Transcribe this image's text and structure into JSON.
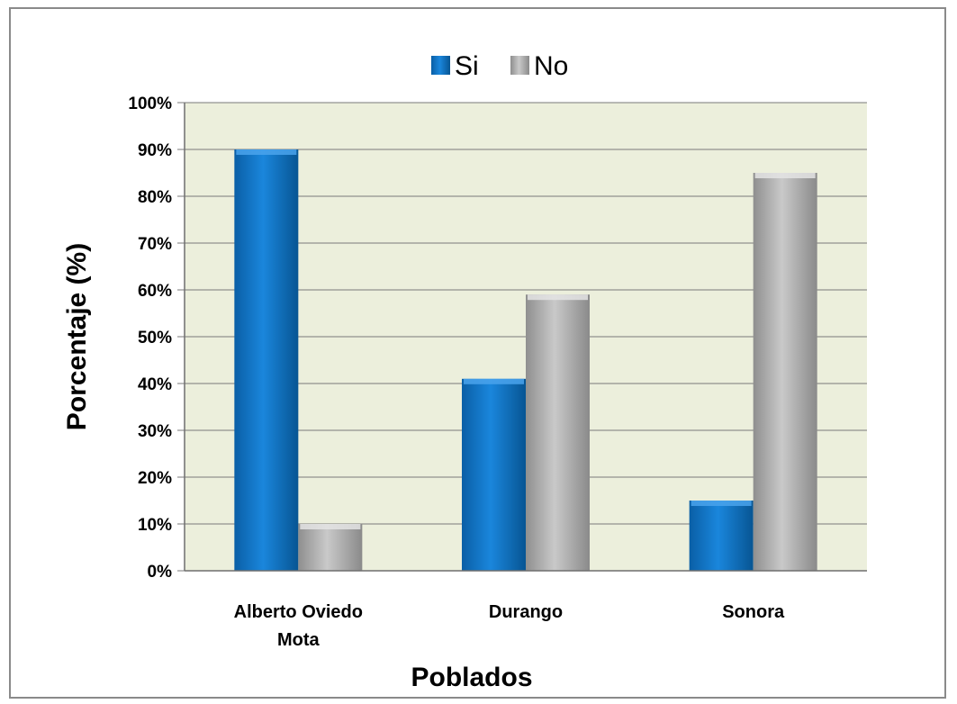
{
  "chart_data": {
    "type": "bar",
    "title": "",
    "xlabel": "Poblados",
    "ylabel": "Porcentaje (%)",
    "categories": [
      "Alberto Oviedo Mota",
      "Durango",
      "Sonora"
    ],
    "category_lines": [
      [
        "Alberto Oviedo",
        "Mota"
      ],
      [
        "Durango"
      ],
      [
        "Sonora"
      ]
    ],
    "series": [
      {
        "name": "Si",
        "values": [
          90,
          41,
          15
        ],
        "color": "#0a73c9"
      },
      {
        "name": "No",
        "values": [
          10,
          59,
          85
        ],
        "color": "#a9a9a9"
      }
    ],
    "ylim": [
      0,
      100
    ],
    "yticks": [
      0,
      10,
      20,
      30,
      40,
      50,
      60,
      70,
      80,
      90,
      100
    ],
    "ytick_labels": [
      "0%",
      "10%",
      "20%",
      "30%",
      "40%",
      "50%",
      "60%",
      "70%",
      "80%",
      "90%",
      "100%"
    ],
    "grid": true,
    "legend_position": "top",
    "plot_background": "#ecefdc"
  }
}
